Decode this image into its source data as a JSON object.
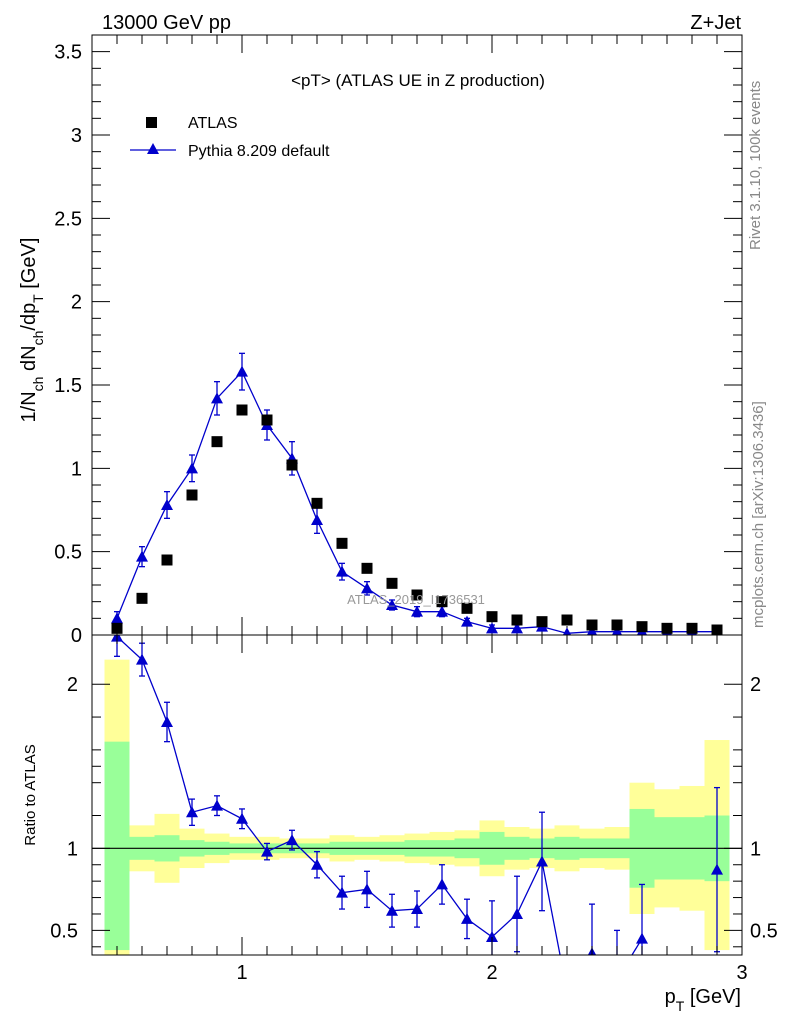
{
  "header": {
    "energy_label": "13000 GeV pp",
    "process_label": "Z+Jet",
    "rivet_label": "Rivet 3.1.10,  100k events",
    "mcplots_label": "mcplots.cern.ch [arXiv:1306.3436]",
    "watermark": "ATLAS_2019_I1736531"
  },
  "colors": {
    "pythia": "#0000cc",
    "data": "#000000",
    "band_inner": "#99ff99",
    "band_outer": "#ffff99"
  },
  "chart_data": [
    {
      "type": "scatter",
      "title": "<pT> (ATLAS UE in Z production)",
      "xlabel": "p_T [GeV]",
      "ylabel": "1/N_ch dN_ch/dp_T [GeV]",
      "xlim": [
        0.4,
        3.0
      ],
      "ylim": [
        0,
        3.6
      ],
      "y_ticks": [
        0,
        0.5,
        1,
        1.5,
        2,
        2.5,
        3,
        3.5
      ],
      "y_tick_labels": [
        "0",
        "0.5",
        "1",
        "1.5",
        "2",
        "2.5",
        "3",
        "3.5"
      ],
      "legend_position": "top-left",
      "series": [
        {
          "name": "ATLAS",
          "marker": "square",
          "x": [
            0.5,
            0.6,
            0.7,
            0.8,
            0.9,
            1.0,
            1.1,
            1.2,
            1.3,
            1.4,
            1.5,
            1.6,
            1.7,
            1.8,
            1.9,
            2.0,
            2.1,
            2.2,
            2.3,
            2.4,
            2.5,
            2.6,
            2.7,
            2.8,
            2.9
          ],
          "y": [
            0.04,
            0.22,
            0.45,
            0.84,
            1.16,
            1.35,
            1.29,
            1.02,
            0.79,
            0.55,
            0.4,
            0.31,
            0.24,
            0.2,
            0.16,
            0.11,
            0.09,
            0.08,
            0.09,
            0.06,
            0.06,
            0.05,
            0.04,
            0.04,
            0.03
          ]
        },
        {
          "name": "Pythia 8.209 default",
          "marker": "triangle",
          "x": [
            0.5,
            0.6,
            0.7,
            0.8,
            0.9,
            1.0,
            1.1,
            1.2,
            1.3,
            1.4,
            1.5,
            1.6,
            1.7,
            1.8,
            1.9,
            2.0,
            2.1,
            2.2,
            2.3,
            2.4,
            2.5,
            2.6,
            2.7,
            2.8,
            2.9
          ],
          "y": [
            0.1,
            0.47,
            0.78,
            1.0,
            1.42,
            1.58,
            1.26,
            1.06,
            0.69,
            0.38,
            0.28,
            0.18,
            0.14,
            0.14,
            0.08,
            0.04,
            0.04,
            0.05,
            0.01,
            0.02,
            0.02,
            0.02,
            0.02,
            0.02,
            0.02
          ],
          "err": [
            0.04,
            0.06,
            0.08,
            0.08,
            0.1,
            0.11,
            0.09,
            0.1,
            0.08,
            0.05,
            0.04,
            0.03,
            0.03,
            0.03,
            0.02,
            0.02,
            0.02,
            0.02,
            0.01,
            0.01,
            0.01,
            0.01,
            0.01,
            0.01,
            0.01
          ]
        }
      ]
    },
    {
      "type": "line",
      "ylabel": "Ratio to ATLAS",
      "xlabel": "p_T [GeV]",
      "xlim": [
        0.4,
        3.0
      ],
      "ylim": [
        0.35,
        2.3
      ],
      "x_ticks": [
        1,
        2,
        3
      ],
      "x_tick_labels": [
        "1",
        "2",
        "3"
      ],
      "y_ticks": [
        0.5,
        1,
        2
      ],
      "y_tick_labels": [
        "0.5",
        "1",
        "2"
      ],
      "band_edges": [
        0.45,
        0.55,
        0.65,
        0.75,
        0.85,
        0.95,
        1.05,
        1.15,
        1.25,
        1.35,
        1.45,
        1.55,
        1.65,
        1.75,
        1.85,
        1.95,
        2.05,
        2.15,
        2.25,
        2.35,
        2.45,
        2.55,
        2.65,
        2.75,
        2.85,
        2.95
      ],
      "band_inner": [
        [
          0.38,
          1.65
        ],
        [
          0.93,
          1.07
        ],
        [
          0.92,
          1.08
        ],
        [
          0.95,
          1.05
        ],
        [
          0.96,
          1.04
        ],
        [
          0.97,
          1.03
        ],
        [
          0.97,
          1.03
        ],
        [
          0.97,
          1.03
        ],
        [
          0.97,
          1.03
        ],
        [
          0.96,
          1.04
        ],
        [
          0.96,
          1.04
        ],
        [
          0.96,
          1.04
        ],
        [
          0.95,
          1.05
        ],
        [
          0.95,
          1.05
        ],
        [
          0.94,
          1.06
        ],
        [
          0.9,
          1.1
        ],
        [
          0.93,
          1.07
        ],
        [
          0.94,
          1.06
        ],
        [
          0.93,
          1.07
        ],
        [
          0.94,
          1.06
        ],
        [
          0.94,
          1.06
        ],
        [
          0.76,
          1.24
        ],
        [
          0.81,
          1.19
        ],
        [
          0.81,
          1.19
        ],
        [
          0.8,
          1.2
        ]
      ],
      "band_outer": [
        [
          0.35,
          2.15
        ],
        [
          0.86,
          1.14
        ],
        [
          0.79,
          1.21
        ],
        [
          0.88,
          1.12
        ],
        [
          0.91,
          1.09
        ],
        [
          0.93,
          1.07
        ],
        [
          0.93,
          1.07
        ],
        [
          0.94,
          1.06
        ],
        [
          0.94,
          1.06
        ],
        [
          0.92,
          1.08
        ],
        [
          0.93,
          1.07
        ],
        [
          0.92,
          1.08
        ],
        [
          0.91,
          1.09
        ],
        [
          0.9,
          1.1
        ],
        [
          0.89,
          1.11
        ],
        [
          0.83,
          1.17
        ],
        [
          0.87,
          1.13
        ],
        [
          0.88,
          1.12
        ],
        [
          0.86,
          1.14
        ],
        [
          0.88,
          1.12
        ],
        [
          0.87,
          1.13
        ],
        [
          0.6,
          1.4
        ],
        [
          0.64,
          1.36
        ],
        [
          0.62,
          1.38
        ],
        [
          0.38,
          1.66
        ]
      ],
      "series": [
        {
          "name": "Pythia 8.209 default",
          "x": [
            0.5,
            0.6,
            0.7,
            0.8,
            0.9,
            1.0,
            1.1,
            1.2,
            1.3,
            1.4,
            1.5,
            1.6,
            1.7,
            1.8,
            1.9,
            2.0,
            2.1,
            2.2,
            2.3,
            2.4,
            2.5,
            2.6,
            2.7,
            2.8,
            2.9
          ],
          "y": [
            2.29,
            2.15,
            1.77,
            1.22,
            1.26,
            1.18,
            0.98,
            1.05,
            0.9,
            0.73,
            0.75,
            0.62,
            0.63,
            0.78,
            0.57,
            0.46,
            0.6,
            0.92,
            0.13,
            0.36,
            0.2,
            0.45,
            null,
            null,
            0.87
          ],
          "err": [
            0.12,
            0.1,
            0.12,
            0.08,
            0.06,
            0.06,
            0.05,
            0.06,
            0.08,
            0.1,
            0.11,
            0.1,
            0.11,
            0.12,
            0.12,
            0.22,
            0.23,
            0.3,
            0.2,
            0.3,
            0.3,
            0.33,
            null,
            null,
            0.5
          ]
        }
      ]
    }
  ]
}
